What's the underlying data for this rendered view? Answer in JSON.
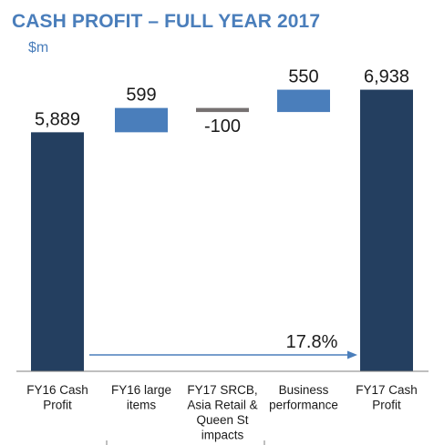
{
  "chart_data": {
    "type": "waterfall",
    "title": "CASH PROFIT – FULL YEAR 2017",
    "unit_label": "$m",
    "categories": [
      [
        "FY16 Cash",
        "Profit"
      ],
      [
        "FY16 large",
        "items"
      ],
      [
        "FY17 SRCB,",
        "Asia Retail &",
        "Queen St",
        "impacts"
      ],
      [
        "Business",
        "performance"
      ],
      [
        "FY17 Cash",
        "Profit"
      ]
    ],
    "values": [
      5889,
      599,
      -100,
      550,
      6938
    ],
    "value_labels": [
      "5,889",
      "599",
      "-100",
      "550",
      "6,938"
    ],
    "bar_kinds": [
      "total",
      "increase",
      "decrease",
      "increase",
      "total"
    ],
    "growth_annotation": "17.8%",
    "colors": {
      "total": "#243f60",
      "increase": "#4a7ebb",
      "decrease": "#767171",
      "arrow": "#4a7ebb",
      "text": "#1a1a1a",
      "axis": "#7f7f7f"
    }
  }
}
